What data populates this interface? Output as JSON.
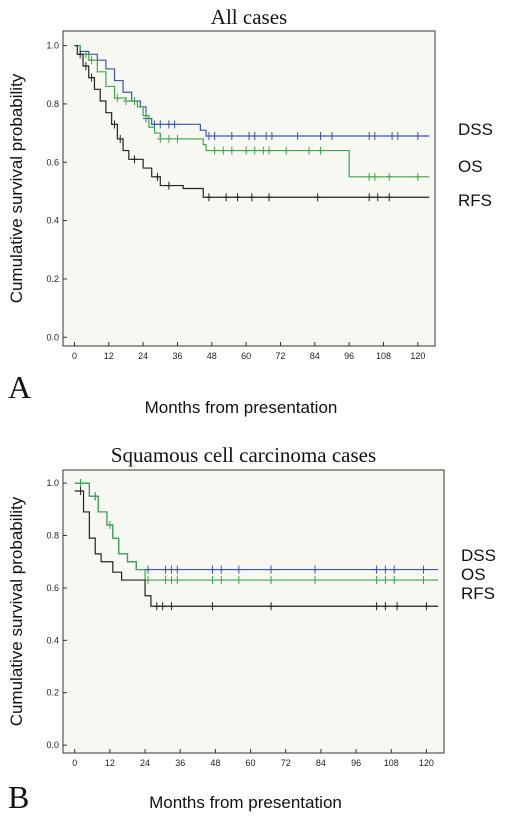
{
  "chart_data": [
    {
      "type": "line",
      "panel": "A",
      "title": "All cases",
      "xlabel": "Months from presentation",
      "ylabel": "Cumulative survival probability",
      "xlim": [
        -4,
        126
      ],
      "ylim": [
        -0.03,
        1.05
      ],
      "xticks": [
        0,
        12,
        24,
        36,
        48,
        60,
        72,
        84,
        96,
        108,
        120
      ],
      "yticks": [
        "0.0",
        "0.2",
        "0.4",
        "0.6",
        "0.8",
        "1.0"
      ],
      "series": [
        {
          "name": "DSS",
          "color": "#3a55b4",
          "steps": [
            [
              0,
              1.0
            ],
            [
              2,
              0.98
            ],
            [
              5,
              0.97
            ],
            [
              8,
              0.95
            ],
            [
              11,
              0.92
            ],
            [
              14,
              0.88
            ],
            [
              17,
              0.84
            ],
            [
              20,
              0.81
            ],
            [
              23,
              0.79
            ],
            [
              25,
              0.75
            ],
            [
              27,
              0.73
            ],
            [
              44,
              0.71
            ],
            [
              46,
              0.69
            ],
            [
              124,
              0.69
            ]
          ],
          "censored": [
            25,
            28,
            30,
            33,
            35,
            47,
            49,
            55,
            61,
            63,
            67,
            69,
            78,
            86,
            90,
            103,
            105,
            111,
            113,
            120
          ]
        },
        {
          "name": "OS",
          "color": "#3aa84a",
          "steps": [
            [
              0,
              1.0
            ],
            [
              2,
              0.97
            ],
            [
              5,
              0.95
            ],
            [
              8,
              0.91
            ],
            [
              11,
              0.86
            ],
            [
              14,
              0.82
            ],
            [
              18,
              0.81
            ],
            [
              22,
              0.79
            ],
            [
              24,
              0.76
            ],
            [
              26,
              0.72
            ],
            [
              28,
              0.7
            ],
            [
              30,
              0.68
            ],
            [
              45,
              0.66
            ],
            [
              46,
              0.64
            ],
            [
              95,
              0.64
            ],
            [
              96,
              0.55
            ],
            [
              124,
              0.55
            ]
          ],
          "censored": [
            4,
            6,
            15,
            18,
            21,
            25,
            30,
            33,
            36,
            49,
            52,
            55,
            60,
            63,
            66,
            68,
            74,
            82,
            86,
            103,
            105,
            110,
            120
          ]
        },
        {
          "name": "RFS",
          "color": "#222222",
          "steps": [
            [
              0,
              1.0
            ],
            [
              1,
              0.97
            ],
            [
              3,
              0.93
            ],
            [
              5,
              0.89
            ],
            [
              7,
              0.85
            ],
            [
              9,
              0.81
            ],
            [
              11,
              0.77
            ],
            [
              13,
              0.73
            ],
            [
              15,
              0.68
            ],
            [
              17,
              0.64
            ],
            [
              19,
              0.61
            ],
            [
              24,
              0.58
            ],
            [
              27,
              0.55
            ],
            [
              30,
              0.52
            ],
            [
              38,
              0.51
            ],
            [
              45,
              0.48
            ],
            [
              124,
              0.48
            ]
          ],
          "censored": [
            2,
            4,
            6,
            14,
            16,
            21,
            29,
            33,
            47,
            53,
            57,
            62,
            68,
            85,
            103,
            106,
            110
          ]
        }
      ]
    },
    {
      "type": "line",
      "panel": "B",
      "title": "Squamous cell carcinoma cases",
      "xlabel": "Months from presentation",
      "ylabel": "Cumulative survival probability",
      "xlim": [
        -4,
        126
      ],
      "ylim": [
        -0.03,
        1.05
      ],
      "xticks": [
        0,
        12,
        24,
        36,
        48,
        60,
        72,
        84,
        96,
        108,
        120
      ],
      "yticks": [
        "0.0",
        "0.2",
        "0.4",
        "0.6",
        "0.8",
        "1.0"
      ],
      "series": [
        {
          "name": "DSS",
          "color": "#3a55b4",
          "steps": [
            [
              0,
              1.0
            ],
            [
              5,
              0.95
            ],
            [
              8,
              0.89
            ],
            [
              11,
              0.84
            ],
            [
              13,
              0.79
            ],
            [
              15,
              0.73
            ],
            [
              18,
              0.7
            ],
            [
              21,
              0.67
            ],
            [
              124,
              0.67
            ]
          ],
          "censored": [
            2,
            7,
            25,
            31,
            33,
            35,
            47,
            50,
            56,
            67,
            82,
            103,
            106,
            109,
            119
          ]
        },
        {
          "name": "OS",
          "color": "#3aa84a",
          "steps": [
            [
              0,
              1.0
            ],
            [
              5,
              0.95
            ],
            [
              8,
              0.89
            ],
            [
              11,
              0.84
            ],
            [
              13,
              0.79
            ],
            [
              15,
              0.73
            ],
            [
              18,
              0.7
            ],
            [
              21,
              0.67
            ],
            [
              24,
              0.63
            ],
            [
              124,
              0.63
            ]
          ],
          "censored": [
            2,
            7,
            12,
            25,
            31,
            33,
            35,
            47,
            50,
            56,
            67,
            82,
            103,
            106,
            109,
            119
          ]
        },
        {
          "name": "RFS",
          "color": "#222222",
          "steps": [
            [
              0,
              0.97
            ],
            [
              3,
              0.89
            ],
            [
              5,
              0.79
            ],
            [
              7,
              0.73
            ],
            [
              9,
              0.7
            ],
            [
              13,
              0.66
            ],
            [
              16,
              0.63
            ],
            [
              24,
              0.57
            ],
            [
              26,
              0.53
            ],
            [
              124,
              0.53
            ]
          ],
          "censored": [
            2,
            28,
            30,
            33,
            47,
            67,
            103,
            106,
            110,
            120
          ]
        }
      ]
    }
  ]
}
